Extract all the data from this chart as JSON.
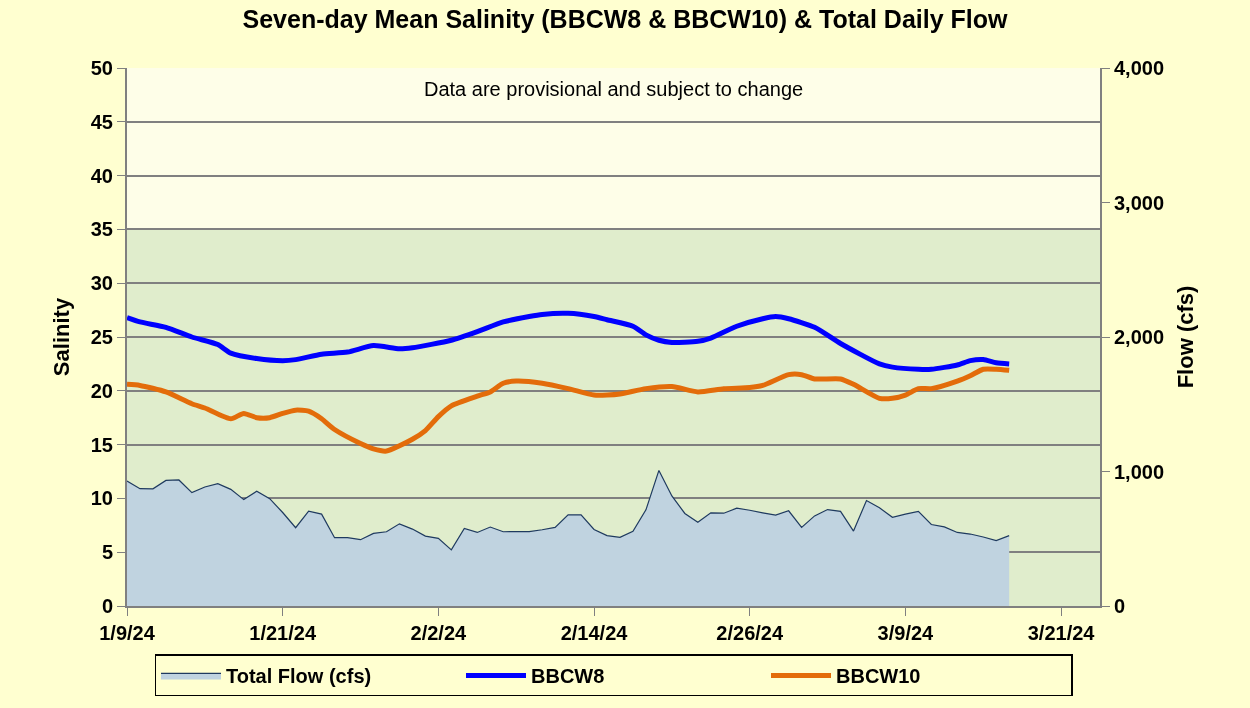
{
  "chart_data": {
    "type": "line",
    "title": "Seven-day Mean Salinity (BBCW8 & BBCW10) & Total Daily Flow",
    "ylabel": "Salinity",
    "y2label": "Flow (cfs)",
    "annotations": [
      "Data are provisional and subject to change"
    ],
    "xlim": [
      "--01-09",
      "--03-24"
    ],
    "xticks": [
      {
        "value": "--01-09",
        "label": "1/9/24"
      },
      {
        "value": "--01-21",
        "label": "1/21/24"
      },
      {
        "value": "--02-02",
        "label": "2/2/24"
      },
      {
        "value": "--02-14",
        "label": "2/14/24"
      },
      {
        "value": "--02-26",
        "label": "2/26/24"
      },
      {
        "value": "--03-09",
        "label": "3/9/24"
      },
      {
        "value": "--03-21",
        "label": "3/21/24"
      }
    ],
    "ylim": [
      0,
      50
    ],
    "yticks": [
      0,
      5,
      10,
      15,
      20,
      25,
      30,
      35,
      40,
      45,
      50
    ],
    "y2lim": [
      0,
      4000
    ],
    "y2ticks": [
      0,
      {
        "value": 1000,
        "label": "1,000"
      },
      {
        "value": 2000,
        "label": "2,000"
      },
      {
        "value": 3000,
        "label": "3,000"
      },
      {
        "value": 4000,
        "label": "4,000"
      }
    ],
    "grid": "y",
    "legend": "bottom",
    "bands": [
      {
        "axis": "y",
        "from": 35,
        "to": 50,
        "color": "#fefee8"
      },
      {
        "axis": "y",
        "from": 0,
        "to": 35,
        "color": "#e0edcc"
      }
    ],
    "series": [
      {
        "name": "Total Flow (cfs)",
        "type": "area",
        "axis": "y2",
        "color": "#c0d3e0",
        "x": [
          "--01-09",
          "--01-10",
          "--01-11",
          "--01-12",
          "--01-13",
          "--01-14",
          "--01-15",
          "--01-16",
          "--01-17",
          "--01-18",
          "--01-19",
          "--01-20",
          "--01-21",
          "--01-22",
          "--01-23",
          "--01-24",
          "--01-25",
          "--01-26",
          "--01-27",
          "--01-28",
          "--01-29",
          "--01-30",
          "--01-31",
          "--02-01",
          "--02-02",
          "--02-03",
          "--02-04",
          "--02-05",
          "--02-06",
          "--02-07",
          "--02-08",
          "--02-09",
          "--02-10",
          "--02-11",
          "--02-12",
          "--02-13",
          "--02-14",
          "--02-15",
          "--02-16",
          "--02-17",
          "--02-18",
          "--02-19",
          "--02-20",
          "--02-21",
          "--02-22",
          "--02-23",
          "--02-24",
          "--02-25",
          "--02-26",
          "--02-27",
          "--02-28",
          "--02-29",
          "--03-01",
          "--03-02",
          "--03-03",
          "--03-04",
          "--03-05",
          "--03-06",
          "--03-07",
          "--03-08",
          "--03-09",
          "--03-10",
          "--03-11",
          "--03-12",
          "--03-13",
          "--03-14",
          "--03-15",
          "--03-16",
          "--03-17"
        ],
        "values": [
          929,
          872,
          871,
          934,
          937,
          843,
          885,
          909,
          867,
          791,
          853,
          798,
          695,
          582,
          705,
          683,
          508,
          508,
          493,
          540,
          552,
          611,
          572,
          520,
          503,
          417,
          577,
          547,
          587,
          552,
          553,
          553,
          567,
          584,
          678,
          678,
          569,
          523,
          510,
          555,
          715,
          1008,
          818,
          688,
          623,
          693,
          690,
          727,
          712,
          693,
          676,
          708,
          584,
          670,
          717,
          704,
          557,
          784,
          730,
          660,
          683,
          704,
          606,
          588,
          547,
          535,
          513,
          486,
          523
        ]
      },
      {
        "name": "BBCW8",
        "color": "#0000ff",
        "x": [
          "--01-09",
          "--01-10",
          "--01-12",
          "--01-14",
          "--01-16",
          "--01-17",
          "--01-19",
          "--01-21",
          "--01-22",
          "--01-24",
          "--01-26",
          "--01-28",
          "--01-30",
          "--01-31",
          "--02-03",
          "--02-05",
          "--02-07",
          "--02-09",
          "--02-10",
          "--02-12",
          "--02-14",
          "--02-15",
          "--02-17",
          "--02-18",
          "--02-19",
          "--02-20",
          "--02-22",
          "--02-23",
          "--02-25",
          "--02-27",
          "--02-28",
          "--02-29",
          "--03-02",
          "--03-04",
          "--03-07",
          "--03-08",
          "--03-10",
          "--03-11",
          "--03-13",
          "--03-14",
          "--03-15",
          "--03-16",
          "--03-17"
        ],
        "values": [
          26.8,
          26.4,
          25.9,
          25.0,
          24.3,
          23.5,
          23.0,
          22.8,
          22.9,
          23.4,
          23.6,
          24.2,
          23.9,
          24.0,
          24.7,
          25.5,
          26.4,
          26.9,
          27.1,
          27.2,
          26.9,
          26.6,
          26.0,
          25.2,
          24.7,
          24.5,
          24.6,
          24.9,
          26.0,
          26.7,
          26.9,
          26.7,
          25.9,
          24.4,
          22.5,
          22.2,
          22.0,
          22.0,
          22.4,
          22.8,
          22.9,
          22.6,
          22.5
        ]
      },
      {
        "name": "BBCW10",
        "color": "#e36c0a",
        "x": [
          "--01-09",
          "--01-10",
          "--01-12",
          "--01-14",
          "--01-15",
          "--01-17",
          "--01-18",
          "--01-19",
          "--01-20",
          "--01-21",
          "--01-22",
          "--01-23",
          "--01-24",
          "--01-25",
          "--01-27",
          "--01-28",
          "--01-29",
          "--01-31",
          "--02-01",
          "--02-02",
          "--02-03",
          "--02-05",
          "--02-06",
          "--02-07",
          "--02-08",
          "--02-10",
          "--02-12",
          "--02-14",
          "--02-15",
          "--02-16",
          "--02-18",
          "--02-20",
          "--02-22",
          "--02-24",
          "--02-26",
          "--02-27",
          "--02-29",
          "--03-01",
          "--03-02",
          "--03-04",
          "--03-05",
          "--03-07",
          "--03-08",
          "--03-09",
          "--03-10",
          "--03-11",
          "--03-13",
          "--03-14",
          "--03-15",
          "--03-16",
          "--03-17"
        ],
        "values": [
          20.6,
          20.5,
          19.9,
          18.8,
          18.4,
          17.4,
          17.9,
          17.5,
          17.5,
          17.9,
          18.2,
          18.1,
          17.4,
          16.4,
          15.1,
          14.6,
          14.4,
          15.5,
          16.3,
          17.6,
          18.6,
          19.5,
          19.9,
          20.7,
          20.9,
          20.7,
          20.2,
          19.6,
          19.6,
          19.7,
          20.2,
          20.4,
          19.9,
          20.2,
          20.3,
          20.5,
          21.5,
          21.5,
          21.1,
          21.1,
          20.6,
          19.3,
          19.3,
          19.6,
          20.2,
          20.2,
          20.9,
          21.4,
          22.0,
          22.0,
          21.9
        ]
      }
    ]
  }
}
